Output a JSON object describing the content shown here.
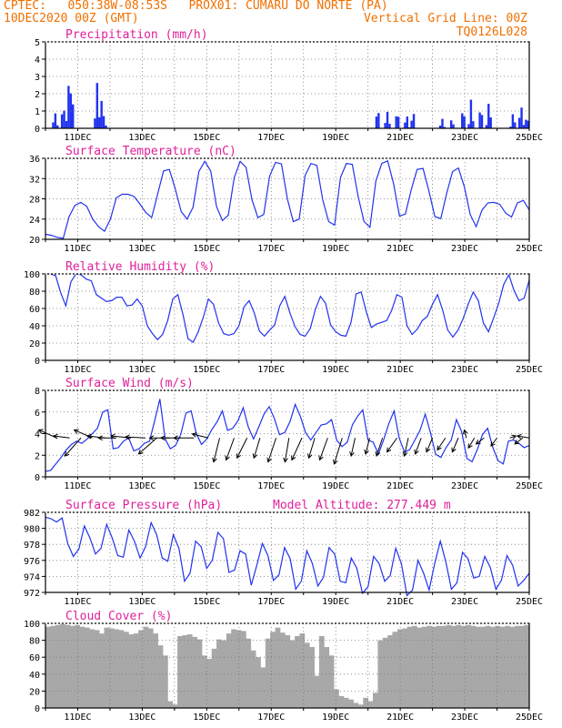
{
  "header": {
    "line1": "CPTEC:   050:38W-08:53S   PROX01: CUMARU DO NORTE (PA)",
    "line2_left": "10DEC2020 00Z (GMT)",
    "line2_right": "Vertical Grid Line: 00Z",
    "line3_right": "TQ0126L028"
  },
  "colors": {
    "header": "#f07000",
    "title": "#e0209a",
    "line": "#2233ee",
    "wind": "#000000",
    "cloud": "#a8a8a8"
  },
  "x_tick_labels": [
    "11DEC",
    "13DEC",
    "15DEC",
    "17DEC",
    "19DEC",
    "21DEC",
    "23DEC",
    "25DEC"
  ],
  "chart_data": [
    {
      "type": "bar",
      "title": "Precipitation (mm/h)",
      "ylim": [
        0,
        5
      ],
      "yticks": [
        0,
        1,
        2,
        3,
        4,
        5
      ],
      "x_unit": "day",
      "xlim": [
        10,
        25
      ],
      "bursts": [
        [
          10.3,
          1.1
        ],
        [
          10.55,
          1.6
        ],
        [
          10.72,
          2.6
        ],
        [
          10.8,
          3.3
        ],
        [
          11.6,
          2.7
        ],
        [
          11.72,
          2.0
        ],
        [
          11.8,
          1.0
        ],
        [
          20.3,
          1.4
        ],
        [
          20.6,
          1.2
        ],
        [
          20.9,
          1.3
        ],
        [
          21.2,
          0.9
        ],
        [
          21.4,
          1.1
        ],
        [
          22.3,
          0.6
        ],
        [
          22.6,
          0.6
        ],
        [
          22.95,
          1.4
        ],
        [
          23.2,
          1.8
        ],
        [
          23.5,
          1.5
        ],
        [
          23.75,
          1.8
        ],
        [
          24.5,
          1.0
        ],
        [
          24.75,
          1.7
        ],
        [
          24.92,
          0.9
        ]
      ]
    },
    {
      "type": "line",
      "title": "Surface Temperature (nC)",
      "ylim": [
        20,
        36
      ],
      "yticks": [
        20,
        24,
        28,
        32,
        36
      ],
      "x_unit": "day",
      "xlim": [
        10,
        25
      ],
      "y": [
        21,
        20.8,
        20.4,
        20.2,
        24.5,
        26.7,
        27.3,
        26.5,
        24,
        22.5,
        21.6,
        24,
        28.2,
        28.9,
        28.9,
        28.5,
        27,
        25.3,
        24.3,
        28.9,
        33.5,
        33.8,
        30,
        25.5,
        24,
        26.3,
        33.4,
        35.4,
        33.5,
        26.5,
        23.7,
        24.8,
        32.2,
        35.4,
        34.2,
        27.8,
        24.3,
        24.9,
        32.5,
        35.2,
        34.9,
        28,
        23.5,
        24,
        32.6,
        35,
        34.6,
        27.8,
        23.5,
        22.8,
        32.2,
        35,
        34.8,
        28.4,
        23.5,
        22.4,
        31.5,
        35,
        35.5,
        31,
        24.6,
        25,
        29.8,
        33.8,
        34,
        29.5,
        24.5,
        24.1,
        29.1,
        33.4,
        34.1,
        30.4,
        24.9,
        22.5,
        25.8,
        27.2,
        27.3,
        26.9,
        25.2,
        24.4,
        27.2,
        27.7,
        25.8
      ]
    },
    {
      "type": "line",
      "title": "Relative Humidity (%)",
      "ylim": [
        0,
        100
      ],
      "yticks": [
        0,
        20,
        40,
        60,
        80,
        100
      ],
      "x_unit": "day",
      "xlim": [
        10,
        25
      ],
      "y": [
        100,
        100,
        98,
        78,
        63,
        91,
        100,
        99,
        94,
        92,
        76,
        72,
        68,
        69,
        73,
        73,
        63,
        64,
        71,
        63,
        40,
        31,
        24,
        30,
        46,
        71,
        76,
        53,
        25,
        21,
        33,
        50,
        71,
        65,
        43,
        31,
        29,
        31,
        40,
        62,
        69,
        55,
        34,
        28,
        35,
        41,
        63,
        74,
        55,
        39,
        30,
        28,
        37,
        59,
        74,
        66,
        41,
        33,
        29,
        28,
        44,
        77,
        79,
        56,
        38,
        42,
        44,
        46,
        58,
        76,
        73,
        40,
        30,
        36,
        46,
        51,
        65,
        76,
        58,
        35,
        27,
        35,
        48,
        65,
        79,
        69,
        43,
        33,
        49,
        66,
        88,
        99,
        81,
        69,
        72,
        93
      ]
    },
    {
      "type": "line",
      "title": "Surface Wind (m/s)",
      "ylim": [
        0,
        8
      ],
      "yticks": [
        0,
        2,
        4,
        6,
        8
      ],
      "x_unit": "day",
      "xlim": [
        10,
        25
      ],
      "y": [
        0.5,
        0.6,
        1.2,
        1.8,
        2.5,
        3,
        3.3,
        3.1,
        3.5,
        4,
        4.5,
        6,
        6.2,
        2.6,
        2.7,
        3.3,
        3.6,
        2.4,
        2.6,
        3.1,
        3.3,
        5.2,
        7.2,
        3.5,
        2.6,
        2.9,
        3.9,
        5.9,
        6.1,
        4,
        3,
        3.5,
        4.4,
        5.1,
        6.1,
        4.3,
        4.5,
        5.2,
        6.4,
        4.6,
        3.5,
        4.6,
        5.8,
        6.5,
        5.4,
        3.9,
        4.1,
        5.1,
        6.7,
        5.6,
        4.1,
        3.4,
        4.1,
        4.8,
        4.9,
        5.3,
        3.4,
        2.8,
        3.2,
        4.8,
        5.6,
        6.2,
        3.4,
        3.2,
        2.1,
        3.4,
        4.9,
        6.1,
        3.6,
        2.3,
        2.5,
        3.4,
        4.3,
        5.8,
        4.1,
        2.1,
        1.8,
        2.7,
        3.4,
        5.3,
        4.2,
        1.7,
        1.4,
        2.5,
        3.9,
        4.5,
        2.7,
        1.5,
        1.2,
        3.3,
        3.4,
        3.1,
        2.7,
        2.9
      ],
      "vectors": [
        [
          10.35,
          -0.9,
          0.4
        ],
        [
          10.75,
          -0.8,
          0.1
        ],
        [
          11.1,
          -0.8,
          -0.9
        ],
        [
          11.45,
          -0.9,
          0.4
        ],
        [
          11.85,
          -0.9,
          0.1
        ],
        [
          12.2,
          -0.9,
          0
        ],
        [
          12.65,
          -1,
          0.1
        ],
        [
          13.1,
          -1,
          0.05
        ],
        [
          13.45,
          -0.9,
          -0.8
        ],
        [
          13.85,
          -1,
          0
        ],
        [
          14.2,
          -1,
          0
        ],
        [
          14.6,
          -1,
          0
        ],
        [
          15.05,
          -0.8,
          0.2
        ],
        [
          15.4,
          -0.3,
          -1.2
        ],
        [
          15.85,
          -0.4,
          -1.1
        ],
        [
          16.25,
          -0.5,
          -1
        ],
        [
          16.65,
          -0.3,
          -1
        ],
        [
          17.15,
          -0.4,
          -1.2
        ],
        [
          17.55,
          -0.2,
          -1.2
        ],
        [
          17.95,
          -0.5,
          -1.1
        ],
        [
          18.35,
          -0.3,
          -1
        ],
        [
          18.75,
          -0.4,
          -1.1
        ],
        [
          19.2,
          -0.4,
          -1.3
        ],
        [
          19.6,
          -0.2,
          -0.9
        ],
        [
          20.05,
          -0.2,
          -0.8
        ],
        [
          20.45,
          -0.3,
          -0.9
        ],
        [
          20.9,
          -0.5,
          -0.7
        ],
        [
          21.25,
          -0.2,
          -0.9
        ],
        [
          21.65,
          -0.3,
          -0.8
        ],
        [
          22,
          -0.3,
          -0.7
        ],
        [
          22.4,
          -0.4,
          -0.6
        ],
        [
          22.8,
          -0.3,
          -0.7
        ],
        [
          23.05,
          -0.1,
          0.4
        ],
        [
          23.3,
          -0.3,
          -0.5
        ],
        [
          23.6,
          -0.4,
          -0.3
        ],
        [
          24,
          -0.3,
          -0.4
        ],
        [
          24.4,
          0.3,
          0.1
        ],
        [
          24.8,
          -0.4,
          -0.3
        ],
        [
          25,
          -0.6,
          0.1
        ]
      ]
    },
    {
      "type": "line",
      "title": "Surface Pressure (hPa)",
      "annotation": "Model Altitude: 277.449 m",
      "ylim": [
        972,
        982
      ],
      "yticks": [
        972,
        974,
        976,
        978,
        980,
        982
      ],
      "x_unit": "day",
      "xlim": [
        10,
        25
      ],
      "y": [
        981.4,
        981.2,
        980.8,
        981.3,
        978.1,
        976.5,
        977.4,
        980.3,
        978.8,
        976.8,
        977.5,
        980.5,
        978.8,
        976.6,
        976.4,
        979.8,
        978.4,
        976.3,
        977.7,
        980.7,
        979.2,
        976.3,
        975.9,
        979.2,
        977.5,
        973.4,
        974.4,
        978.4,
        977.7,
        975,
        976,
        979.5,
        978.7,
        974.5,
        974.8,
        977.2,
        976.8,
        972.9,
        975.4,
        978.1,
        976.6,
        973.5,
        974.2,
        977.6,
        976.2,
        972.4,
        973.4,
        977.2,
        975.6,
        972.8,
        973.9,
        977.6,
        976.8,
        973.4,
        973.2,
        976.3,
        975,
        971.9,
        972.7,
        976.5,
        975.6,
        973.4,
        974.1,
        977.5,
        975.6,
        971.6,
        972.3,
        976,
        974.4,
        972.3,
        975.6,
        978.4,
        975.8,
        972.4,
        973.2,
        977,
        976.2,
        973.8,
        974,
        976.5,
        975.1,
        972.4,
        973.5,
        976.6,
        975.4,
        972.8,
        973.5,
        974.4
      ]
    },
    {
      "type": "area",
      "title": "Cloud Cover (%)",
      "ylim": [
        0,
        100
      ],
      "yticks": [
        0,
        20,
        40,
        60,
        80,
        100
      ],
      "x_unit": "day",
      "xlim": [
        10,
        25
      ],
      "y": [
        96,
        97,
        98,
        99,
        98,
        97,
        98,
        96,
        95,
        93,
        92,
        88,
        95,
        94,
        93,
        92,
        90,
        87,
        88,
        92,
        96,
        94,
        88,
        74,
        62,
        8,
        4,
        85,
        86,
        87,
        84,
        81,
        62,
        58,
        70,
        81,
        80,
        88,
        93,
        92,
        91,
        82,
        68,
        60,
        48,
        82,
        90,
        95,
        89,
        86,
        80,
        85,
        88,
        77,
        72,
        38,
        85,
        72,
        62,
        22,
        14,
        12,
        10,
        6,
        4,
        12,
        8,
        18,
        80,
        83,
        86,
        90,
        93,
        94,
        96,
        97,
        95,
        96,
        97,
        96,
        97,
        97,
        98,
        97,
        98,
        97,
        98,
        97,
        96,
        96,
        97,
        96,
        97,
        96,
        97,
        96,
        97,
        97,
        98
      ]
    }
  ]
}
